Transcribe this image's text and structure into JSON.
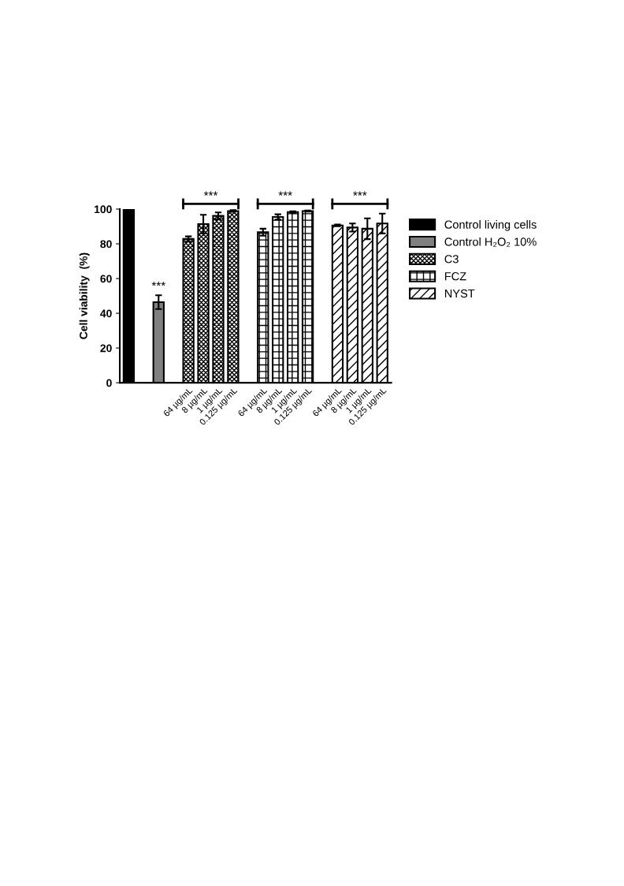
{
  "chart_data": {
    "type": "bar",
    "ylabel": "Cell viability  (%)",
    "categories": [
      null,
      null,
      null,
      null,
      "64 µg/mL",
      "8 µg/mL",
      "1 µg/mL",
      "0.125 µg/mL",
      null,
      "64 µg/mL",
      "8 µg/mL",
      "1 µg/mL",
      "0.125 µg/mL",
      null,
      "64 µg/mL",
      "8 µg/mL",
      "1 µg/mL",
      "0.125 µg/mL"
    ],
    "series": [
      {
        "name": "Control living cells",
        "color": "#000000",
        "values": [
          100,
          null,
          null,
          null,
          null,
          null,
          null,
          null,
          null,
          null,
          null,
          null,
          null,
          null,
          null,
          null,
          null,
          null
        ]
      },
      {
        "name": "Control H₂O₂ 10%",
        "color": "#808080",
        "values": [
          null,
          null,
          46.4,
          null,
          null,
          null,
          null,
          null,
          null,
          null,
          null,
          null,
          null,
          null,
          null,
          null,
          null,
          null
        ],
        "errors": [
          null,
          null,
          4,
          null,
          null,
          null,
          null,
          null,
          null,
          null,
          null,
          null,
          null,
          null,
          null,
          null,
          null,
          null
        ]
      },
      {
        "name": "C3",
        "color": "#000000",
        "values": [
          null,
          null,
          null,
          null,
          82.8,
          91.4,
          96.1,
          98.9,
          null,
          null,
          null,
          null,
          null,
          null,
          null,
          null,
          null,
          null
        ],
        "errors": [
          null,
          null,
          null,
          null,
          1.5,
          5.3,
          2,
          0.5,
          null,
          null,
          null,
          null,
          null,
          null,
          null,
          null,
          null,
          null
        ]
      },
      {
        "name": "FCZ",
        "color": "#000000",
        "values": [
          null,
          null,
          null,
          null,
          null,
          null,
          null,
          null,
          null,
          86.7,
          95.5,
          98.3,
          98.9,
          null,
          null,
          null,
          null,
          null
        ],
        "errors": [
          null,
          null,
          null,
          null,
          null,
          null,
          null,
          null,
          null,
          2,
          1.5,
          0.5,
          0.3,
          null,
          null,
          null,
          null,
          null
        ]
      },
      {
        "name": "NYST",
        "color": "#000000",
        "values": [
          null,
          null,
          null,
          null,
          null,
          null,
          null,
          null,
          null,
          null,
          null,
          null,
          null,
          null,
          90.6,
          89.4,
          88.7,
          91.7
        ],
        "errors": [
          null,
          null,
          null,
          null,
          null,
          null,
          null,
          null,
          null,
          null,
          null,
          null,
          null,
          null,
          0.5,
          2.3,
          6,
          5.7
        ]
      }
    ],
    "ylim": [
      0,
      100
    ],
    "yticks": [
      0,
      20,
      40,
      60,
      80,
      100
    ],
    "grid": false,
    "legend": "right",
    "annotations": [
      {
        "text": "***",
        "y": 52
      },
      "***",
      "***",
      "***"
    ]
  }
}
